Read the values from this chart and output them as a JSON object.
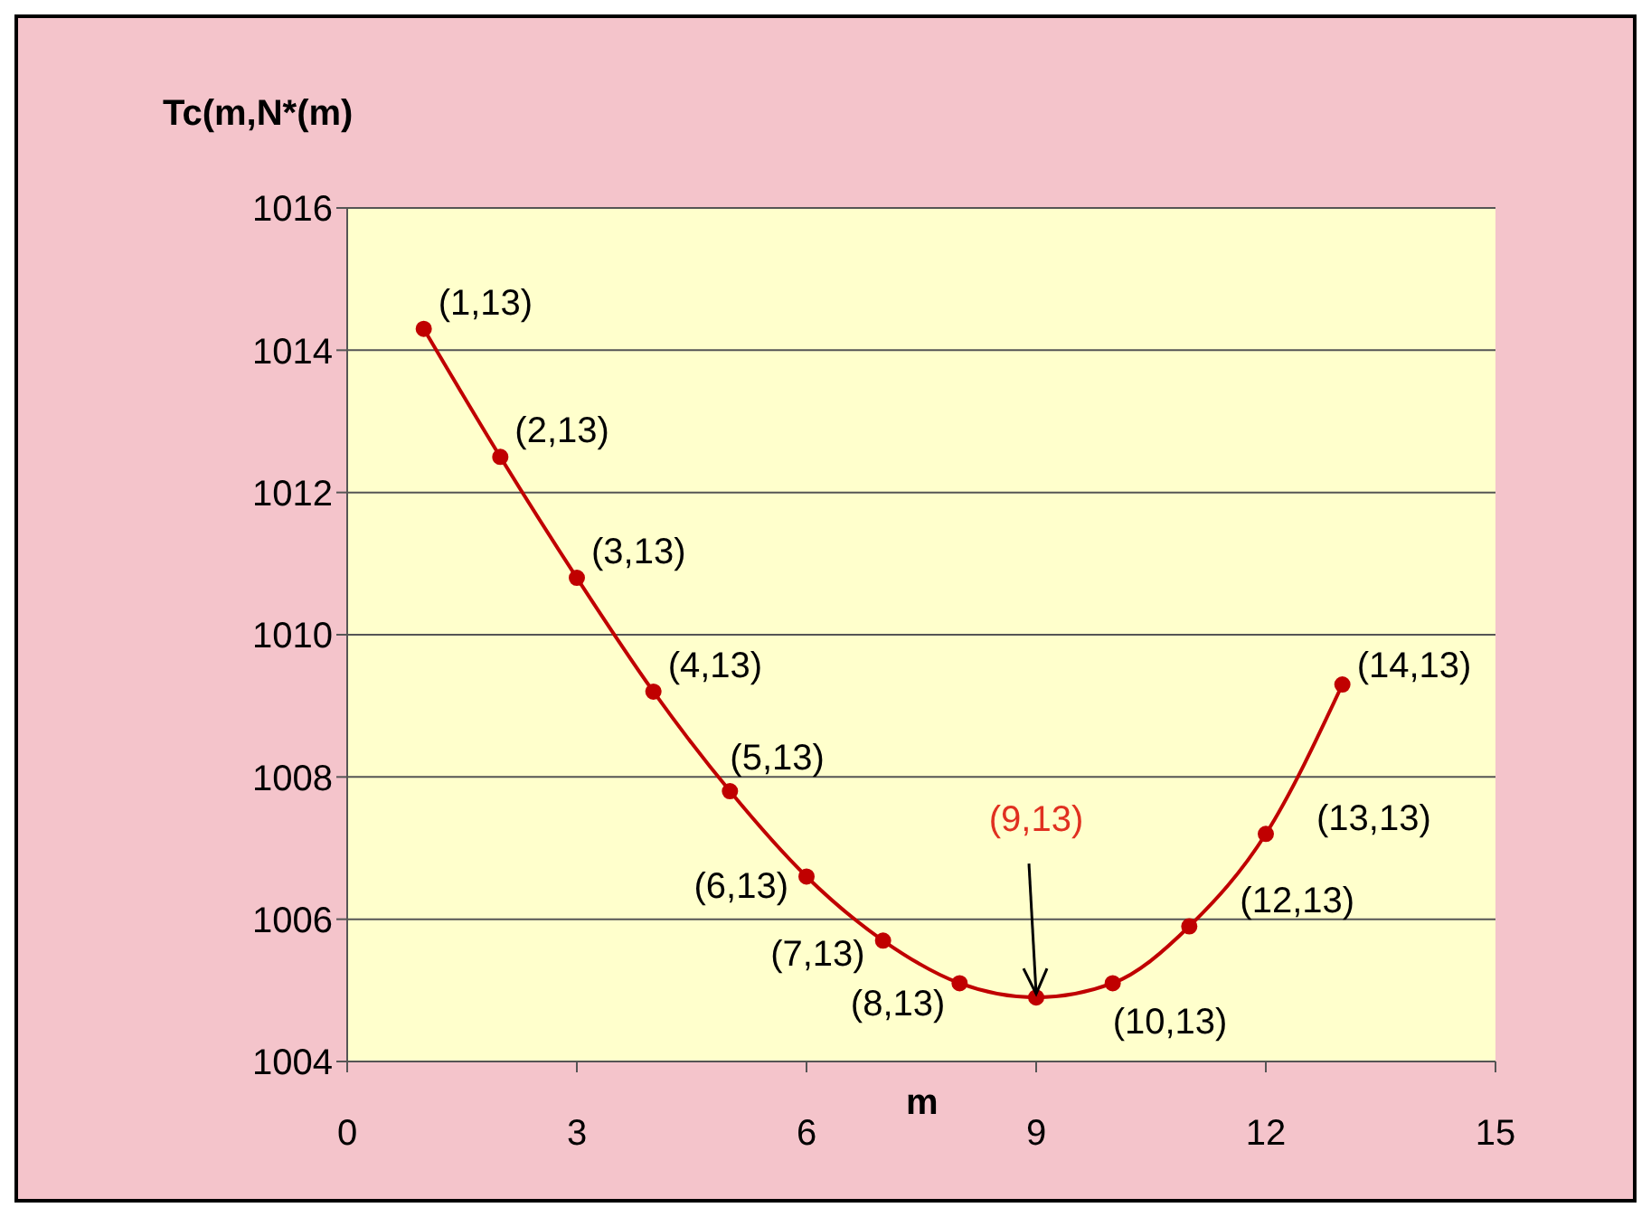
{
  "chart_data": {
    "type": "line",
    "ylabel": "Tc(m,N*(m)",
    "xlabel": "m",
    "x": [
      1,
      2,
      3,
      4,
      5,
      6,
      7,
      8,
      9,
      10,
      11,
      12,
      13
    ],
    "series": [
      {
        "color": "#c00000",
        "values": [
          1014.3,
          1012.5,
          1010.8,
          1009.2,
          1007.8,
          1006.6,
          1005.7,
          1005.1,
          1004.9,
          1005.1,
          1005.9,
          1007.2,
          1009.3
        ]
      }
    ],
    "annotations": [
      {
        "text": "(1,13)",
        "x": 1,
        "y": 1014.3
      },
      {
        "text": "(2,13)",
        "x": 2,
        "y": 1012.5
      },
      {
        "text": "(3,13)",
        "x": 3,
        "y": 1010.8
      },
      {
        "text": "(4,13)",
        "x": 4,
        "y": 1009.2
      },
      {
        "text": "(5,13)",
        "x": 5,
        "y": 1007.8
      },
      {
        "text": "(6,13)",
        "x": 6,
        "y": 1006.6
      },
      {
        "text": "(7,13)",
        "x": 7,
        "y": 1005.7
      },
      {
        "text": "(8,13)",
        "x": 8,
        "y": 1005.1
      },
      {
        "text": "(10,13)",
        "x": 10,
        "y": 1005.1
      },
      {
        "text": "(12,13)",
        "x": 11,
        "y": 1005.9
      },
      {
        "text": "(13,13)",
        "x": 12,
        "y": 1007.2
      },
      {
        "text": "(14,13)",
        "x": 13,
        "y": 1009.3
      },
      {
        "text": "(9,13)",
        "x": 9,
        "y": 1004.9
      }
    ],
    "xlim": [
      0,
      15
    ],
    "xticks": [
      0,
      3,
      6,
      9,
      12,
      15
    ],
    "ylim": [
      1004,
      1016
    ],
    "yticks": [
      1004,
      1006,
      1008,
      1010,
      1012,
      1014,
      1016
    ],
    "grid": "y",
    "marker": "circle",
    "line_style": "solid",
    "legend": false
  }
}
